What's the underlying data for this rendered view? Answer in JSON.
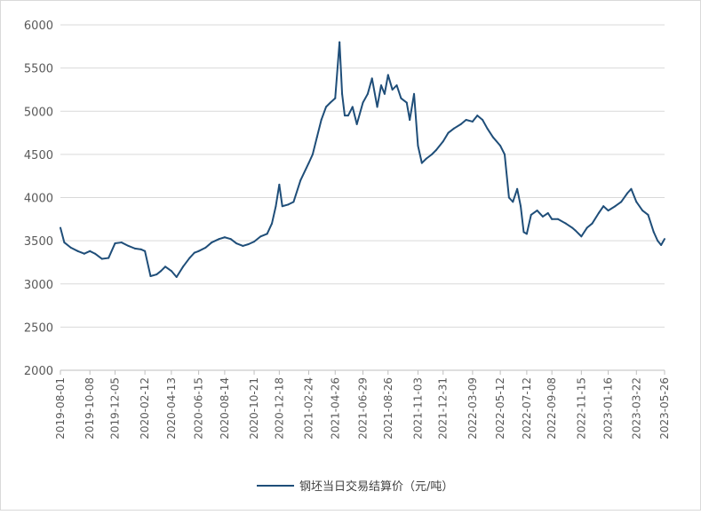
{
  "chart_data": {
    "type": "line",
    "title": "",
    "xlabel": "",
    "ylabel": "",
    "ylim": [
      2000,
      6000
    ],
    "yticks": [
      2000,
      2500,
      3000,
      3500,
      4000,
      4500,
      5000,
      5500,
      6000
    ],
    "xticks": [
      "2019-08-01",
      "2019-10-08",
      "2019-12-05",
      "2020-02-12",
      "2020-04-13",
      "2020-06-15",
      "2020-08-14",
      "2020-10-21",
      "2020-12-18",
      "2021-02-24",
      "2021-04-26",
      "2021-06-29",
      "2021-08-26",
      "2021-11-03",
      "2021-12-31",
      "2022-03-09",
      "2022-05-12",
      "2022-07-12",
      "2022-09-08",
      "2022-11-15",
      "2023-01-16",
      "2023-03-22",
      "2023-05-26"
    ],
    "grid": "horizontal",
    "legend_position": "bottom",
    "line_color": "#1f4e79",
    "series": [
      {
        "name": "钢坯当日交易结算价（元/吨）",
        "x": [
          "2019-08-01",
          "2019-08-10",
          "2019-08-25",
          "2019-09-10",
          "2019-09-25",
          "2019-10-08",
          "2019-10-20",
          "2019-11-05",
          "2019-11-20",
          "2019-12-05",
          "2019-12-20",
          "2020-01-05",
          "2020-01-20",
          "2020-02-03",
          "2020-02-12",
          "2020-02-25",
          "2020-03-10",
          "2020-03-20",
          "2020-03-30",
          "2020-04-13",
          "2020-04-25",
          "2020-05-10",
          "2020-05-25",
          "2020-06-05",
          "2020-06-15",
          "2020-07-01",
          "2020-07-15",
          "2020-08-01",
          "2020-08-14",
          "2020-08-28",
          "2020-09-10",
          "2020-09-25",
          "2020-10-08",
          "2020-10-21",
          "2020-11-05",
          "2020-11-20",
          "2020-12-01",
          "2020-12-10",
          "2020-12-18",
          "2020-12-25",
          "2021-01-08",
          "2021-01-20",
          "2021-02-05",
          "2021-02-24",
          "2021-03-05",
          "2021-03-15",
          "2021-03-25",
          "2021-04-05",
          "2021-04-15",
          "2021-04-26",
          "2021-05-06",
          "2021-05-12",
          "2021-05-18",
          "2021-05-26",
          "2021-06-05",
          "2021-06-15",
          "2021-06-29",
          "2021-07-10",
          "2021-07-20",
          "2021-08-01",
          "2021-08-10",
          "2021-08-18",
          "2021-08-26",
          "2021-09-05",
          "2021-09-15",
          "2021-09-25",
          "2021-10-08",
          "2021-10-15",
          "2021-10-25",
          "2021-11-03",
          "2021-11-12",
          "2021-11-22",
          "2021-12-05",
          "2021-12-15",
          "2021-12-31",
          "2022-01-12",
          "2022-01-25",
          "2022-02-10",
          "2022-02-22",
          "2022-03-09",
          "2022-03-20",
          "2022-04-01",
          "2022-04-12",
          "2022-04-25",
          "2022-05-12",
          "2022-05-22",
          "2022-06-01",
          "2022-06-10",
          "2022-06-20",
          "2022-06-28",
          "2022-07-05",
          "2022-07-12",
          "2022-07-22",
          "2022-08-05",
          "2022-08-18",
          "2022-08-30",
          "2022-09-08",
          "2022-09-22",
          "2022-10-10",
          "2022-10-25",
          "2022-11-01",
          "2022-11-15",
          "2022-11-28",
          "2022-12-10",
          "2022-12-25",
          "2023-01-05",
          "2023-01-16",
          "2023-02-01",
          "2023-02-15",
          "2023-03-01",
          "2023-03-10",
          "2023-03-22",
          "2023-04-05",
          "2023-04-18",
          "2023-05-01",
          "2023-05-10",
          "2023-05-18",
          "2023-05-26"
        ],
        "values": [
          3650,
          3480,
          3420,
          3380,
          3350,
          3380,
          3350,
          3290,
          3300,
          3470,
          3480,
          3440,
          3410,
          3400,
          3380,
          3090,
          3110,
          3150,
          3200,
          3150,
          3080,
          3200,
          3300,
          3360,
          3380,
          3420,
          3480,
          3520,
          3540,
          3520,
          3470,
          3440,
          3460,
          3490,
          3550,
          3580,
          3700,
          3900,
          4150,
          3900,
          3920,
          3950,
          4200,
          4400,
          4500,
          4700,
          4900,
          5050,
          5100,
          5150,
          5800,
          5200,
          4950,
          4950,
          5050,
          4850,
          5100,
          5200,
          5380,
          5050,
          5300,
          5200,
          5420,
          5250,
          5300,
          5150,
          5100,
          4900,
          5200,
          4600,
          4400,
          4450,
          4500,
          4550,
          4650,
          4750,
          4800,
          4850,
          4900,
          4880,
          4950,
          4900,
          4800,
          4700,
          4600,
          4500,
          4000,
          3950,
          4100,
          3900,
          3600,
          3580,
          3800,
          3850,
          3780,
          3820,
          3750,
          3750,
          3700,
          3650,
          3620,
          3550,
          3650,
          3700,
          3820,
          3900,
          3850,
          3900,
          3950,
          4050,
          4100,
          3950,
          3850,
          3800,
          3600,
          3500,
          3450,
          3520
        ]
      }
    ]
  }
}
